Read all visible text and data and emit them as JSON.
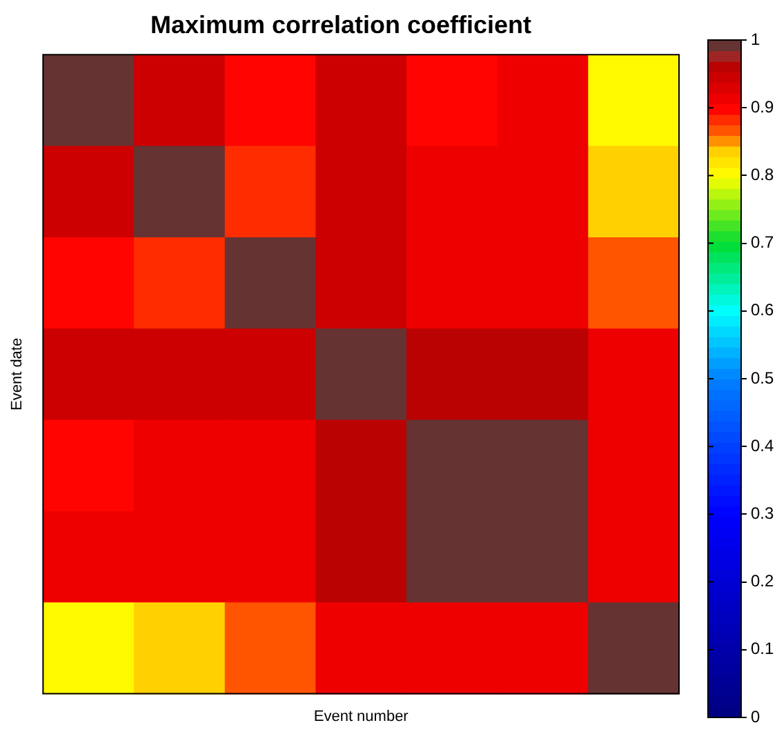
{
  "chart_data": {
    "type": "heatmap",
    "title": "Maximum correlation coefficient",
    "xlabel": "Event number",
    "ylabel": "Event date",
    "categories": [
      null,
      null,
      null,
      null,
      null,
      null,
      null
    ],
    "y_categories": [
      null,
      null,
      null,
      null,
      null,
      null,
      null
    ],
    "cells": [
      [
        1,
        0.94,
        0.9,
        0.95,
        0.9,
        0.92,
        0.8
      ],
      [
        0.94,
        1,
        0.88,
        0.95,
        0.92,
        0.92,
        0.83
      ],
      [
        0.9,
        0.88,
        1,
        0.94,
        0.92,
        0.92,
        0.86
      ],
      [
        0.95,
        0.95,
        0.94,
        1,
        0.96,
        0.96,
        0.92
      ],
      [
        0.9,
        0.92,
        0.92,
        0.96,
        1,
        1,
        0.92
      ],
      [
        0.92,
        0.92,
        0.92,
        0.96,
        1,
        1,
        0.92
      ],
      [
        0.8,
        0.83,
        0.86,
        0.92,
        0.92,
        0.92,
        1
      ]
    ],
    "clim": [
      0,
      1
    ],
    "cticks": [
      0,
      0.1,
      0.2,
      0.3,
      0.4,
      0.5,
      0.6,
      0.7,
      0.8,
      0.9,
      1
    ],
    "tick_labels": false
  }
}
